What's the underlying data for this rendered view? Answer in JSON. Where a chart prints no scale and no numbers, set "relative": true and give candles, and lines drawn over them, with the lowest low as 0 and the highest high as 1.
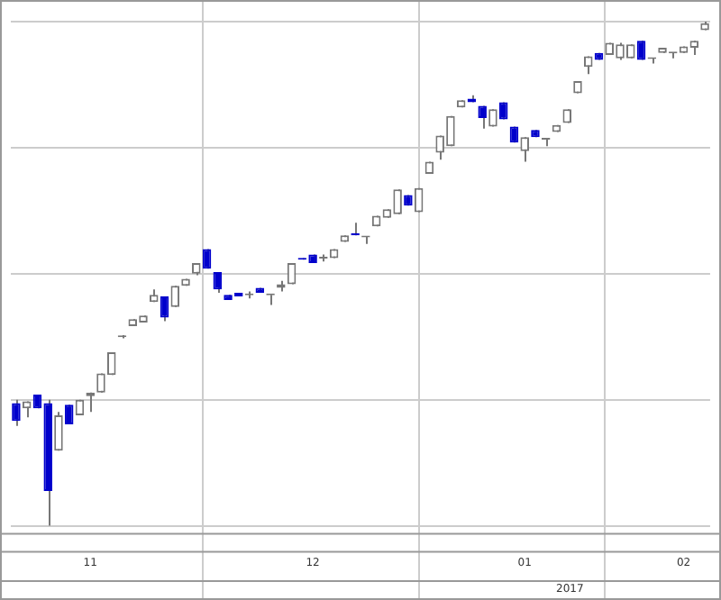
{
  "chart_data": {
    "type": "candlestick",
    "relative": true,
    "grid": true,
    "categories": [
      null,
      null,
      null,
      null,
      null,
      null,
      null,
      "11",
      null,
      null,
      null,
      null,
      null,
      null,
      null,
      null,
      null,
      null,
      null,
      null,
      null,
      null,
      null,
      null,
      null,
      null,
      null,
      null,
      "12",
      null,
      null,
      null,
      null,
      null,
      null,
      null,
      null,
      null,
      null,
      null,
      null,
      null,
      null,
      null,
      null,
      null,
      null,
      null,
      "01",
      null,
      null,
      null,
      null,
      null,
      null,
      null,
      null,
      null,
      null,
      null,
      null,
      null,
      null,
      "02",
      null,
      null
    ],
    "ohlc": [
      [
        0.243,
        0.25,
        0.198,
        0.208
      ],
      [
        0.233,
        0.247,
        0.215,
        0.247
      ],
      [
        0.26,
        0.26,
        0.233,
        0.233
      ],
      [
        0.243,
        0.25,
        0,
        0.069
      ],
      [
        0.149,
        0.226,
        0.149,
        0.219
      ],
      [
        0.24,
        0.24,
        0.201,
        0.201
      ],
      [
        0.219,
        0.25,
        0.219,
        0.25
      ],
      [
        0.257,
        0.264,
        0.226,
        0.264
      ],
      [
        0.264,
        0.302,
        0.264,
        0.302
      ],
      [
        0.299,
        0.344,
        0.299,
        0.344
      ],
      [
        0.374,
        0.378,
        0.372,
        0.375
      ],
      [
        0.396,
        0.41,
        0.396,
        0.41
      ],
      [
        0.403,
        0.417,
        0.403,
        0.417
      ],
      [
        0.444,
        0.469,
        0.444,
        0.458
      ],
      [
        0.455,
        0.455,
        0.406,
        0.413
      ],
      [
        0.434,
        0.476,
        0.434,
        0.476
      ],
      [
        0.476,
        0.49,
        0.476,
        0.49
      ],
      [
        0.5,
        0.521,
        0.497,
        0.521
      ],
      [
        0.549,
        0.549,
        0.51,
        0.51
      ],
      [
        0.503,
        0.503,
        0.462,
        0.469
      ],
      [
        0.458,
        0.458,
        0.448,
        0.448
      ],
      [
        0.462,
        0.462,
        0.455,
        0.455
      ],
      [
        0.457,
        0.465,
        0.451,
        0.458
      ],
      [
        0.472,
        0.472,
        0.462,
        0.462
      ],
      [
        0.457,
        0.458,
        0.438,
        0.458
      ],
      [
        0.472,
        0.486,
        0.465,
        0.479
      ],
      [
        0.479,
        0.521,
        0.479,
        0.521
      ],
      [
        0.531,
        0.531,
        0.528,
        0.528
      ],
      [
        0.538,
        0.538,
        0.521,
        0.521
      ],
      [
        0.53,
        0.538,
        0.524,
        0.531
      ],
      [
        0.531,
        0.549,
        0.531,
        0.549
      ],
      [
        0.563,
        0.576,
        0.563,
        0.576
      ],
      [
        0.58,
        0.601,
        0.576,
        0.576
      ],
      [
        0.572,
        0.573,
        0.559,
        0.573
      ],
      [
        0.594,
        0.615,
        0.594,
        0.615
      ],
      [
        0.611,
        0.628,
        0.611,
        0.628
      ],
      [
        0.618,
        0.667,
        0.618,
        0.667
      ],
      [
        0.656,
        0.656,
        0.635,
        0.635
      ],
      [
        0.622,
        0.67,
        0.622,
        0.67
      ],
      [
        0.698,
        0.722,
        0.698,
        0.722
      ],
      [
        0.74,
        0.774,
        0.726,
        0.774
      ],
      [
        0.753,
        0.813,
        0.753,
        0.813
      ],
      [
        0.83,
        0.844,
        0.83,
        0.844
      ],
      [
        0.847,
        0.854,
        0.84,
        0.84
      ],
      [
        0.833,
        0.833,
        0.788,
        0.809
      ],
      [
        0.792,
        0.826,
        0.792,
        0.826
      ],
      [
        0.84,
        0.84,
        0.806,
        0.806
      ],
      [
        0.792,
        0.792,
        0.76,
        0.76
      ],
      [
        0.743,
        0.771,
        0.722,
        0.771
      ],
      [
        0.785,
        0.785,
        0.771,
        0.771
      ],
      [
        0.766,
        0.767,
        0.753,
        0.767
      ],
      [
        0.781,
        0.795,
        0.781,
        0.795
      ],
      [
        0.799,
        0.826,
        0.799,
        0.826
      ],
      [
        0.858,
        0.882,
        0.858,
        0.882
      ],
      [
        0.91,
        0.931,
        0.896,
        0.931
      ],
      [
        0.938,
        0.938,
        0.924,
        0.924
      ],
      [
        0.934,
        0.958,
        0.934,
        0.958
      ],
      [
        0.927,
        0.958,
        0.924,
        0.955
      ],
      [
        0.927,
        0.955,
        0.927,
        0.955
      ],
      [
        0.962,
        0.962,
        0.924,
        0.924
      ],
      [
        0.926,
        0.927,
        0.917,
        0.927
      ],
      [
        0.938,
        0.948,
        0.938,
        0.948
      ],
      [
        0.937,
        0.938,
        0.927,
        0.938
      ],
      [
        0.938,
        0.951,
        0.938,
        0.951
      ],
      [
        0.948,
        0.962,
        0.934,
        0.962
      ],
      [
        0.983,
        1.0,
        0.983,
        0.997
      ]
    ],
    "colors": [
      "#0000cc",
      "#777777",
      "#0000cc",
      "#0000cc",
      "#777777",
      "#0000cc",
      "#777777",
      "#777777",
      "#777777",
      "#777777",
      "#777777",
      "#777777",
      "#777777",
      "#777777",
      "#0000cc",
      "#777777",
      "#777777",
      "#777777",
      "#0000cc",
      "#0000cc",
      "#0000cc",
      "#0000cc",
      "#777777",
      "#0000cc",
      "#777777",
      "#777777",
      "#777777",
      "#0000cc",
      "#0000cc",
      "#777777",
      "#777777",
      "#777777",
      "#0000cc",
      "#777777",
      "#777777",
      "#777777",
      "#777777",
      "#0000cc",
      "#777777",
      "#777777",
      "#777777",
      "#777777",
      "#777777",
      "#0000cc",
      "#0000cc",
      "#777777",
      "#0000cc",
      "#0000cc",
      "#777777",
      "#0000cc",
      "#777777",
      "#777777",
      "#777777",
      "#777777",
      "#777777",
      "#0000cc",
      "#777777",
      "#777777",
      "#777777",
      "#0000cc",
      "#777777",
      "#777777",
      "#777777",
      "#777777",
      "#777777",
      "#777777"
    ],
    "annotations": [
      "2017"
    ]
  }
}
